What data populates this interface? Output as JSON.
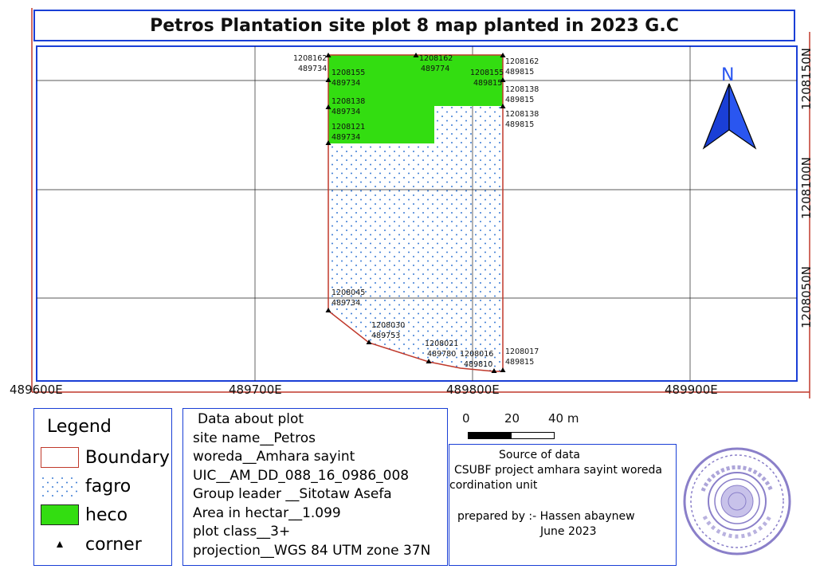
{
  "title": "Petros Plantation site plot 8 map planted in 2023 G.C",
  "axes": {
    "x_ticks": [
      "489600E",
      "489700E",
      "489800E",
      "489900E"
    ],
    "y_ticks": [
      "1208150N",
      "1208100N",
      "1208050N"
    ]
  },
  "north_arrow": {
    "label": "N",
    "icon": "north-arrow-icon"
  },
  "corner_labels": [
    {
      "n": "1208162",
      "e": "489734"
    },
    {
      "n": "1208162",
      "e": "489774"
    },
    {
      "n": "1208162",
      "e": "489815"
    },
    {
      "n": "1208155",
      "e": "489734"
    },
    {
      "n": "1208155",
      "e": "489815"
    },
    {
      "n": "1208138",
      "e": "489815"
    },
    {
      "n": "1208138",
      "e": "489734"
    },
    {
      "n": "1208138",
      "e": "489815"
    },
    {
      "n": "1208121",
      "e": "489734"
    },
    {
      "n": "1208045",
      "e": "489734"
    },
    {
      "n": "1208030",
      "e": "489753"
    },
    {
      "n": "1208021",
      "e": "489780"
    },
    {
      "n": "1208016",
      "e": "489810"
    },
    {
      "n": "1208017",
      "e": "489815"
    }
  ],
  "legend": {
    "title": "Legend",
    "items": [
      {
        "label": "Boundary",
        "color": "#c0392b"
      },
      {
        "label": "fagro",
        "color": "#3a7bd5"
      },
      {
        "label": "heco",
        "color": "#33dd11"
      },
      {
        "label": "corner",
        "color": "#000000"
      }
    ]
  },
  "plot_info": {
    "heading": "Data about plot",
    "lines": [
      "site name__Petros",
      "woreda__Amhara sayint",
      "UIC__AM_DD_088_16_0986_008",
      "Group leader __Sitotaw Asefa",
      "Area in hectar__1.099",
      "plot class__3+",
      "projection__WGS 84 UTM zone 37N"
    ]
  },
  "scale_bar": {
    "labels": [
      "0",
      "20",
      "40 m"
    ]
  },
  "source": {
    "lines": [
      "Source of data",
      "CSUBF project amhara sayint woreda",
      "cordination unit",
      "prepared by :- Hassen abaynew",
      "June 2023"
    ]
  },
  "stamp": {
    "icon": "official-stamp-icon",
    "color": "#8a7fc9"
  }
}
